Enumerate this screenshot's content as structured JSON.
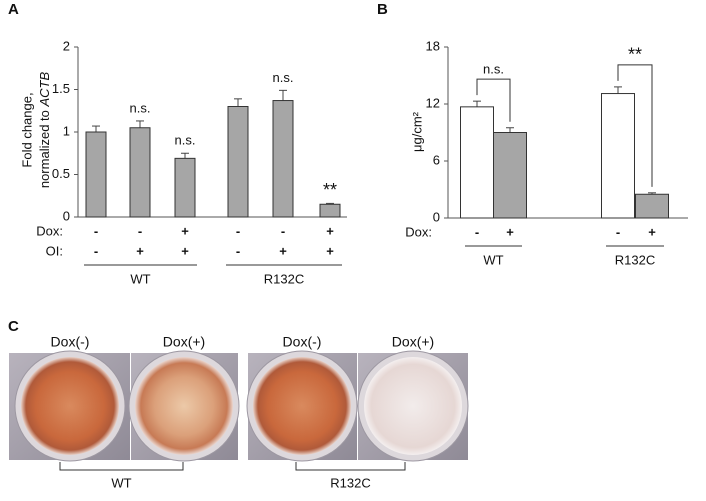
{
  "chart_data": [
    {
      "type": "bar",
      "panel": "A",
      "ylabel": {
        "line1": "Fold change,",
        "line2": "normalized to ",
        "gene": "ACTB"
      },
      "values": [
        1.0,
        1.05,
        0.69,
        1.3,
        1.37,
        0.15
      ],
      "errors": [
        0.07,
        0.08,
        0.06,
        0.09,
        0.12,
        0.01
      ],
      "color": "#a6a6a6",
      "annotations": [
        null,
        "n.s.",
        "n.s.",
        null,
        "n.s.",
        "**"
      ],
      "rows": [
        {
          "label": "Dox:",
          "signs": [
            "-",
            "-",
            "+",
            "-",
            "-",
            "+"
          ]
        },
        {
          "label": "OI:",
          "signs": [
            "-",
            "+",
            "+",
            "-",
            "+",
            "+"
          ]
        }
      ],
      "groups": [
        "WT",
        "R132C"
      ],
      "ylim": [
        0,
        2
      ],
      "yticks": [
        0,
        0.5,
        1,
        1.5,
        2
      ]
    },
    {
      "type": "bar",
      "panel": "B",
      "ylabel": {
        "line1": "μg/cm²"
      },
      "values": [
        11.7,
        9.0,
        13.1,
        2.5
      ],
      "errors": [
        0.6,
        0.5,
        0.7,
        0.15
      ],
      "colors": [
        "#ffffff",
        "#a6a6a6",
        "#ffffff",
        "#a6a6a6"
      ],
      "comparisons": [
        "n.s.",
        "**"
      ],
      "rows": [
        {
          "label": "Dox:",
          "signs": [
            "-",
            "+",
            "-",
            "+"
          ]
        }
      ],
      "groups": [
        "WT",
        "R132C"
      ],
      "ylim": [
        0,
        18
      ],
      "yticks": [
        0,
        6,
        12,
        18
      ]
    }
  ],
  "panel_c": {
    "panel": "C",
    "wells": [
      "Dox(-)",
      "Dox(+)",
      "Dox(-)",
      "Dox(+)"
    ],
    "groups": [
      "WT",
      "R132C"
    ]
  }
}
